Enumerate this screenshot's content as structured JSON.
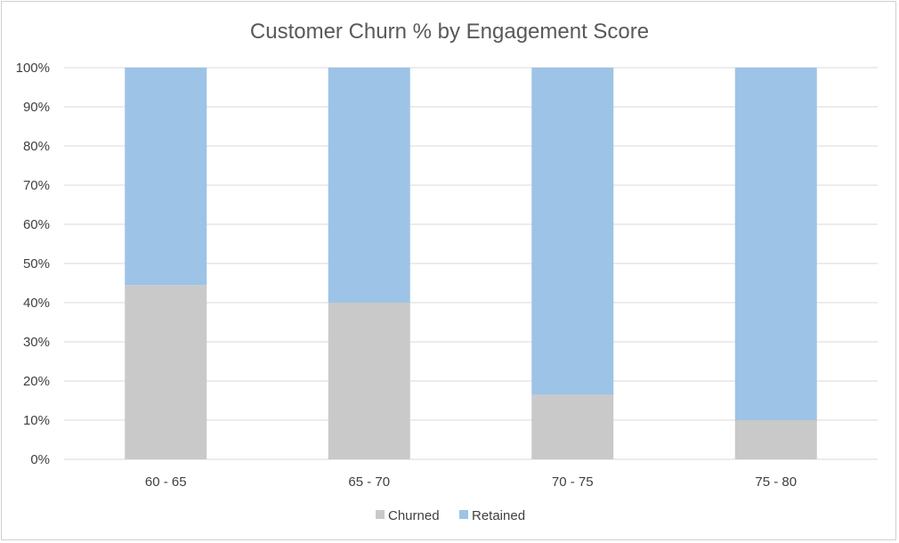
{
  "chart_data": {
    "type": "bar",
    "stacked": true,
    "percent_stacked": true,
    "title": "Customer Churn % by Engagement Score",
    "xlabel": "",
    "ylabel": "",
    "categories": [
      "60 - 65",
      "65 - 70",
      "70 - 75",
      "75 - 80"
    ],
    "series": [
      {
        "name": "Churned",
        "color": "#c9c9c9",
        "values": [
          44.5,
          40,
          16.5,
          10
        ]
      },
      {
        "name": "Retained",
        "color": "#9dc3e6",
        "values": [
          55.5,
          60,
          83.5,
          90
        ]
      }
    ],
    "ylim": [
      0,
      100
    ],
    "yticks": [
      "0%",
      "10%",
      "20%",
      "30%",
      "40%",
      "50%",
      "60%",
      "70%",
      "80%",
      "90%",
      "100%"
    ],
    "grid": true,
    "legend_position": "bottom"
  }
}
